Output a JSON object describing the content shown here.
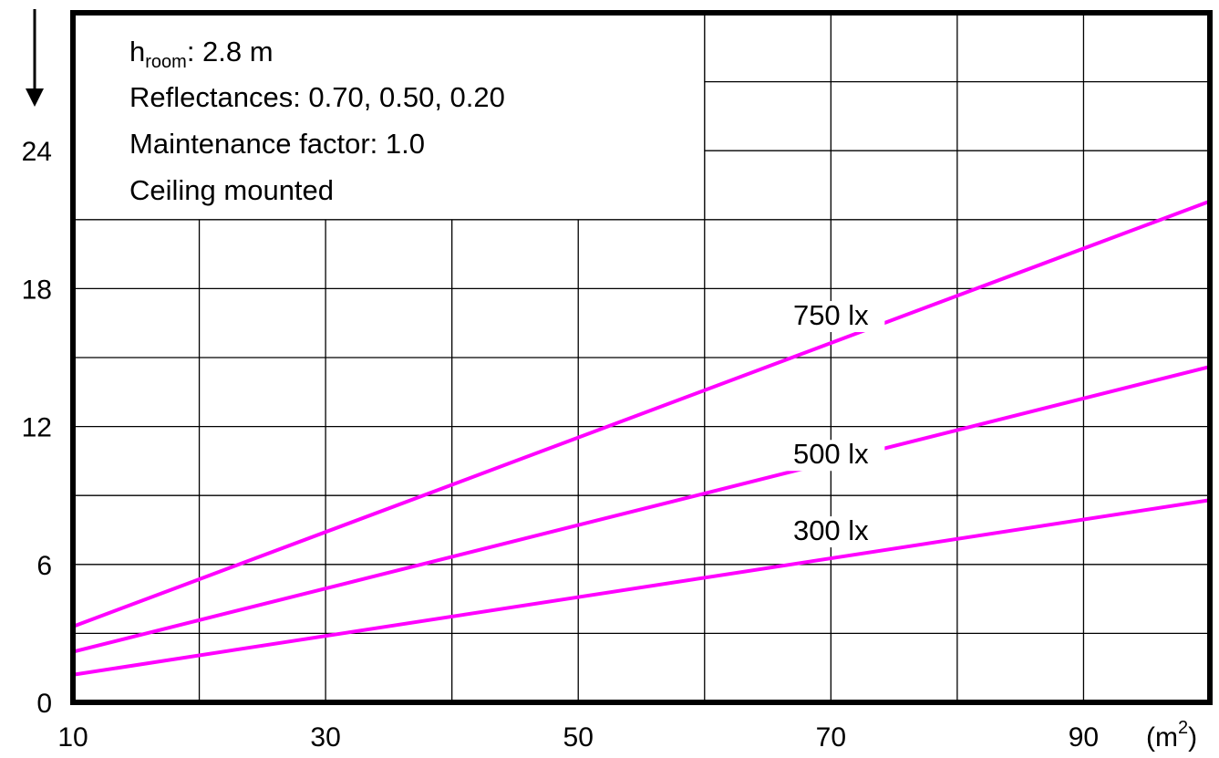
{
  "chart_data": {
    "type": "line",
    "x_ticks": [
      10,
      30,
      50,
      70,
      90
    ],
    "y_ticks": [
      0,
      6,
      12,
      18,
      24
    ],
    "x_unit_prefix": "(m",
    "x_unit_sup": "2",
    "x_unit_suffix": ")",
    "xlim": [
      10,
      100
    ],
    "ylim": [
      0,
      30
    ],
    "grid": true,
    "line_color": "#ff00ff",
    "series": [
      {
        "name": "750 lx",
        "x": [
          10,
          100
        ],
        "y": [
          3.3,
          21.8
        ]
      },
      {
        "name": "500 lx",
        "x": [
          10,
          100
        ],
        "y": [
          2.2,
          14.6
        ]
      },
      {
        "name": "300 lx",
        "x": [
          10,
          100
        ],
        "y": [
          1.2,
          8.8
        ]
      }
    ],
    "notes": {
      "room_height_prefix": "h",
      "room_height_sub": "room",
      "room_height_suffix": ": 2.8 m",
      "reflectances": "Reflectances: 0.70, 0.50, 0.20",
      "maintenance": "Maintenance factor: 1.0",
      "mounting": "Ceiling mounted"
    }
  }
}
